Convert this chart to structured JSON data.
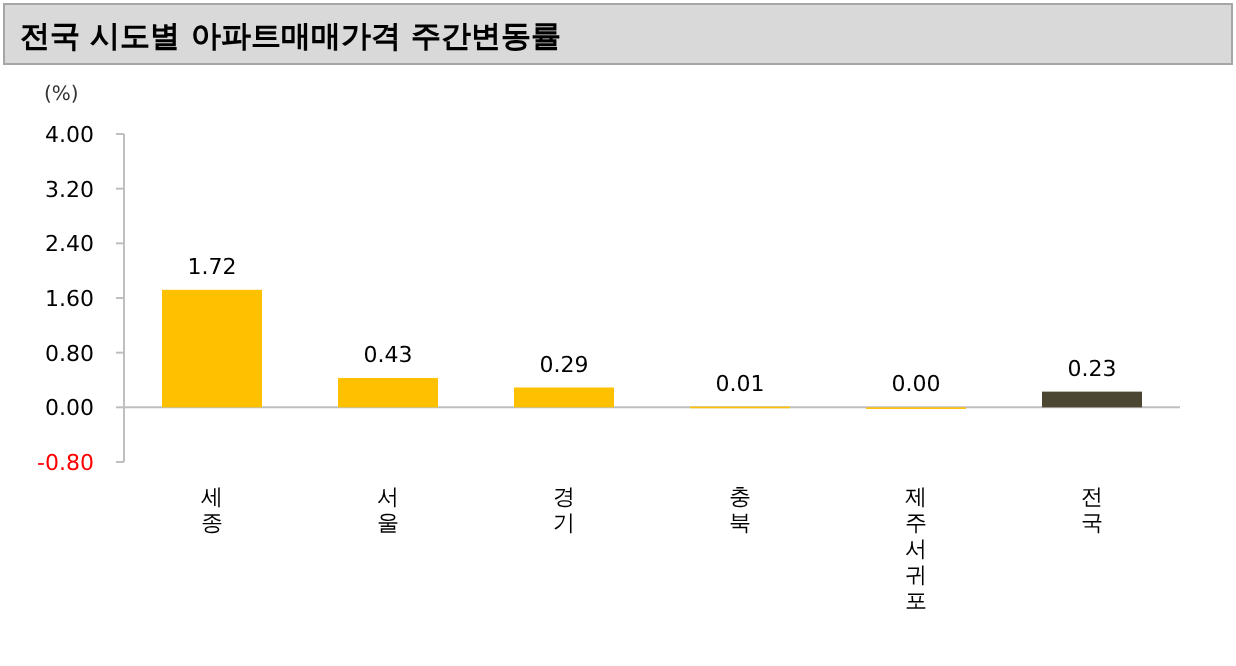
{
  "chart_data": {
    "type": "bar",
    "title": "전국 시도별 아파트매매가격 주간변동률",
    "ylabel": "(%)",
    "categories": [
      "세종",
      "서울",
      "경기",
      "충북",
      "제주서귀포",
      "전국"
    ],
    "values": [
      1.72,
      0.43,
      0.29,
      0.01,
      0.0,
      0.23
    ],
    "colors": [
      "#ffc000",
      "#ffc000",
      "#ffc000",
      "#ffc000",
      "#ffc000",
      "#4b4631"
    ],
    "ylim": [
      -0.8,
      4.0
    ],
    "yticks": [
      {
        "value": 4.0,
        "label": "4.00"
      },
      {
        "value": 3.2,
        "label": "3.20"
      },
      {
        "value": 2.4,
        "label": "2.40"
      },
      {
        "value": 1.6,
        "label": "1.60"
      },
      {
        "value": 0.8,
        "label": "0.80"
      },
      {
        "value": 0.0,
        "label": "0.00"
      },
      {
        "value": -0.8,
        "label": "-0.80"
      }
    ],
    "value_labels": [
      "1.72",
      "0.43",
      "0.29",
      "0.01",
      "0.00",
      "0.23"
    ]
  }
}
